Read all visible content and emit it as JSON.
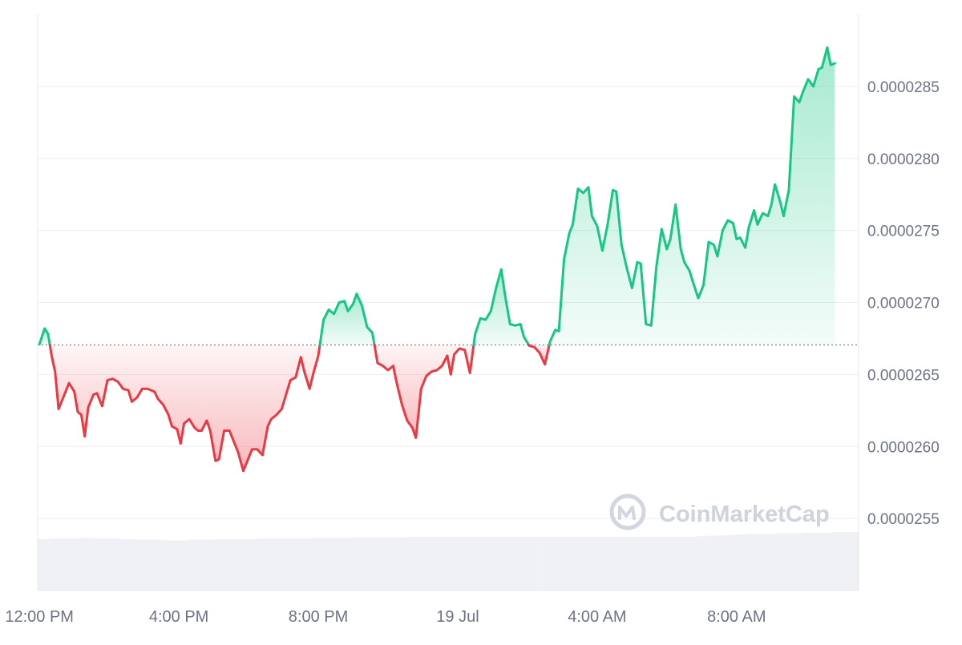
{
  "chart_data": {
    "type": "line",
    "reference_value": 2.6705e-05,
    "y_ticks": [
      {
        "value": 2.85e-05,
        "label": "0.0000285"
      },
      {
        "value": 2.8e-05,
        "label": "0.0000280"
      },
      {
        "value": 2.75e-05,
        "label": "0.0000275"
      },
      {
        "value": 2.7e-05,
        "label": "0.0000270"
      },
      {
        "value": 2.65e-05,
        "label": "0.0000265"
      },
      {
        "value": 2.6e-05,
        "label": "0.0000260"
      },
      {
        "value": 2.55e-05,
        "label": "0.0000255"
      }
    ],
    "ylim": [
      2.5e-05,
      2.9e-05
    ],
    "x_ticks": [
      {
        "value": 12,
        "label": "12:00 PM"
      },
      {
        "value": 16,
        "label": "4:00 PM"
      },
      {
        "value": 20,
        "label": "8:00 PM"
      },
      {
        "value": 24,
        "label": "19 Jul"
      },
      {
        "value": 28,
        "label": "4:00 AM"
      },
      {
        "value": 32,
        "label": "8:00 AM"
      }
    ],
    "xlim": [
      11.95,
      35.5
    ],
    "grid": true,
    "up_color": "#16c784",
    "down_color": "#ea3943",
    "points": [
      [
        12.0,
        2.671e-05
      ],
      [
        12.15,
        2.682e-05
      ],
      [
        12.25,
        2.678e-05
      ],
      [
        12.35,
        2.663e-05
      ],
      [
        12.45,
        2.652e-05
      ],
      [
        12.55,
        2.626e-05
      ],
      [
        12.7,
        2.635e-05
      ],
      [
        12.85,
        2.644e-05
      ],
      [
        13.0,
        2.638e-05
      ],
      [
        13.1,
        2.624e-05
      ],
      [
        13.2,
        2.622e-05
      ],
      [
        13.3,
        2.607e-05
      ],
      [
        13.4,
        2.627e-05
      ],
      [
        13.55,
        2.636e-05
      ],
      [
        13.65,
        2.637e-05
      ],
      [
        13.8,
        2.628e-05
      ],
      [
        13.95,
        2.646e-05
      ],
      [
        14.1,
        2.647e-05
      ],
      [
        14.25,
        2.645e-05
      ],
      [
        14.4,
        2.64e-05
      ],
      [
        14.55,
        2.639e-05
      ],
      [
        14.65,
        2.631e-05
      ],
      [
        14.8,
        2.634e-05
      ],
      [
        14.95,
        2.64e-05
      ],
      [
        15.1,
        2.64e-05
      ],
      [
        15.3,
        2.638e-05
      ],
      [
        15.4,
        2.633e-05
      ],
      [
        15.55,
        2.629e-05
      ],
      [
        15.7,
        2.622e-05
      ],
      [
        15.8,
        2.614e-05
      ],
      [
        15.95,
        2.612e-05
      ],
      [
        16.05,
        2.602e-05
      ],
      [
        16.15,
        2.616e-05
      ],
      [
        16.3,
        2.619e-05
      ],
      [
        16.45,
        2.613e-05
      ],
      [
        16.55,
        2.611e-05
      ],
      [
        16.65,
        2.611e-05
      ],
      [
        16.8,
        2.618e-05
      ],
      [
        16.9,
        2.611e-05
      ],
      [
        17.05,
        2.59e-05
      ],
      [
        17.15,
        2.591e-05
      ],
      [
        17.3,
        2.611e-05
      ],
      [
        17.45,
        2.611e-05
      ],
      [
        17.55,
        2.605e-05
      ],
      [
        17.7,
        2.596e-05
      ],
      [
        17.85,
        2.583e-05
      ],
      [
        17.95,
        2.589e-05
      ],
      [
        18.1,
        2.598e-05
      ],
      [
        18.25,
        2.598e-05
      ],
      [
        18.4,
        2.594e-05
      ],
      [
        18.55,
        2.614e-05
      ],
      [
        18.65,
        2.619e-05
      ],
      [
        18.8,
        2.622e-05
      ],
      [
        18.95,
        2.626e-05
      ],
      [
        19.1,
        2.638e-05
      ],
      [
        19.2,
        2.646e-05
      ],
      [
        19.35,
        2.648e-05
      ],
      [
        19.5,
        2.662e-05
      ],
      [
        19.6,
        2.652e-05
      ],
      [
        19.75,
        2.64e-05
      ],
      [
        19.85,
        2.65e-05
      ],
      [
        20.0,
        2.663e-05
      ],
      [
        20.15,
        2.688e-05
      ],
      [
        20.3,
        2.695e-05
      ],
      [
        20.45,
        2.692e-05
      ],
      [
        20.6,
        2.7e-05
      ],
      [
        20.75,
        2.701e-05
      ],
      [
        20.85,
        2.694e-05
      ],
      [
        21.0,
        2.699e-05
      ],
      [
        21.1,
        2.706e-05
      ],
      [
        21.25,
        2.698e-05
      ],
      [
        21.4,
        2.683e-05
      ],
      [
        21.55,
        2.679e-05
      ],
      [
        21.7,
        2.658e-05
      ],
      [
        21.85,
        2.656e-05
      ],
      [
        22.0,
        2.653e-05
      ],
      [
        22.15,
        2.656e-05
      ],
      [
        22.25,
        2.644e-05
      ],
      [
        22.4,
        2.629e-05
      ],
      [
        22.55,
        2.618e-05
      ],
      [
        22.7,
        2.613e-05
      ],
      [
        22.8,
        2.606e-05
      ],
      [
        22.95,
        2.64e-05
      ],
      [
        23.1,
        2.649e-05
      ],
      [
        23.25,
        2.652e-05
      ],
      [
        23.4,
        2.653e-05
      ],
      [
        23.55,
        2.656e-05
      ],
      [
        23.7,
        2.663e-05
      ],
      [
        23.8,
        2.65e-05
      ],
      [
        23.9,
        2.664e-05
      ],
      [
        24.05,
        2.668e-05
      ],
      [
        24.2,
        2.667e-05
      ],
      [
        24.35,
        2.651e-05
      ],
      [
        24.5,
        2.678e-05
      ],
      [
        24.65,
        2.689e-05
      ],
      [
        24.8,
        2.688e-05
      ],
      [
        24.95,
        2.694e-05
      ],
      [
        25.1,
        2.71e-05
      ],
      [
        25.25,
        2.723e-05
      ],
      [
        25.35,
        2.706e-05
      ],
      [
        25.5,
        2.685e-05
      ],
      [
        25.65,
        2.684e-05
      ],
      [
        25.8,
        2.685e-05
      ],
      [
        25.9,
        2.676e-05
      ],
      [
        26.05,
        2.67e-05
      ],
      [
        26.2,
        2.669e-05
      ],
      [
        26.35,
        2.665e-05
      ],
      [
        26.5,
        2.657e-05
      ],
      [
        26.65,
        2.673e-05
      ],
      [
        26.8,
        2.681e-05
      ],
      [
        26.9,
        2.68e-05
      ],
      [
        27.05,
        2.73e-05
      ],
      [
        27.2,
        2.748e-05
      ],
      [
        27.3,
        2.754e-05
      ],
      [
        27.45,
        2.779e-05
      ],
      [
        27.6,
        2.776e-05
      ],
      [
        27.75,
        2.78e-05
      ],
      [
        27.85,
        2.76e-05
      ],
      [
        28.0,
        2.753e-05
      ],
      [
        28.15,
        2.736e-05
      ],
      [
        28.3,
        2.754e-05
      ],
      [
        28.45,
        2.778e-05
      ],
      [
        28.55,
        2.777e-05
      ],
      [
        28.7,
        2.74e-05
      ],
      [
        28.85,
        2.724e-05
      ],
      [
        29.0,
        2.71e-05
      ],
      [
        29.15,
        2.728e-05
      ],
      [
        29.25,
        2.727e-05
      ],
      [
        29.4,
        2.685e-05
      ],
      [
        29.55,
        2.684e-05
      ],
      [
        29.7,
        2.725e-05
      ],
      [
        29.85,
        2.751e-05
      ],
      [
        30.0,
        2.737e-05
      ],
      [
        30.1,
        2.744e-05
      ],
      [
        30.25,
        2.768e-05
      ],
      [
        30.4,
        2.737e-05
      ],
      [
        30.5,
        2.728e-05
      ],
      [
        30.65,
        2.722e-05
      ],
      [
        30.75,
        2.714e-05
      ],
      [
        30.9,
        2.703e-05
      ],
      [
        31.05,
        2.712e-05
      ],
      [
        31.2,
        2.742e-05
      ],
      [
        31.35,
        2.74e-05
      ],
      [
        31.45,
        2.732e-05
      ],
      [
        31.6,
        2.75e-05
      ],
      [
        31.75,
        2.757e-05
      ],
      [
        31.9,
        2.755e-05
      ],
      [
        32.0,
        2.744e-05
      ],
      [
        32.1,
        2.745e-05
      ],
      [
        32.25,
        2.738e-05
      ],
      [
        32.35,
        2.752e-05
      ],
      [
        32.5,
        2.764e-05
      ],
      [
        32.6,
        2.754e-05
      ],
      [
        32.75,
        2.762e-05
      ],
      [
        32.9,
        2.76e-05
      ],
      [
        33.0,
        2.768e-05
      ],
      [
        33.1,
        2.782e-05
      ],
      [
        33.25,
        2.77e-05
      ],
      [
        33.35,
        2.76e-05
      ],
      [
        33.5,
        2.778e-05
      ],
      [
        33.65,
        2.843e-05
      ],
      [
        33.8,
        2.839e-05
      ],
      [
        33.9,
        2.846e-05
      ],
      [
        34.05,
        2.855e-05
      ],
      [
        34.2,
        2.85e-05
      ],
      [
        34.35,
        2.862e-05
      ],
      [
        34.45,
        2.863e-05
      ],
      [
        34.6,
        2.877e-05
      ],
      [
        34.7,
        2.865e-05
      ],
      [
        34.82,
        2.866e-05
      ]
    ],
    "volume": [
      0.54,
      0.55,
      0.55,
      0.56,
      0.55,
      0.55,
      0.54,
      0.53,
      0.53,
      0.52,
      0.52,
      0.53,
      0.53,
      0.54,
      0.54,
      0.54,
      0.55,
      0.55,
      0.55,
      0.55,
      0.56,
      0.56,
      0.56,
      0.57,
      0.57,
      0.57,
      0.57,
      0.58,
      0.58,
      0.58,
      0.58,
      0.58,
      0.58,
      0.58,
      0.58,
      0.58,
      0.58,
      0.58,
      0.58,
      0.58,
      0.58,
      0.58,
      0.58,
      0.58,
      0.58,
      0.58,
      0.58,
      0.58,
      0.59,
      0.6,
      0.61,
      0.62,
      0.63,
      0.63,
      0.64,
      0.64,
      0.65,
      0.65,
      0.66,
      0.66
    ],
    "watermark": "CoinMarketCap"
  }
}
